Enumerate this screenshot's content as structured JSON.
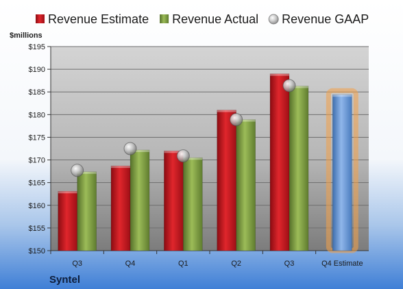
{
  "company": "Syntel",
  "chart_data": {
    "type": "bar",
    "unit_label": "$millions",
    "categories": [
      "Q3",
      "Q4",
      "Q1",
      "Q2",
      "Q3",
      "Q4 Estimate"
    ],
    "y_ticks": [
      "$150",
      "$155",
      "$160",
      "$165",
      "$170",
      "$175",
      "$180",
      "$185",
      "$190",
      "$195"
    ],
    "ylim": [
      150,
      195
    ],
    "legend_position": "top",
    "series": [
      {
        "name": "Revenue Estimate",
        "color": "#c8141c",
        "marker": "bar",
        "values": [
          163.1,
          168.7,
          172.0,
          181.0,
          189.0,
          null
        ]
      },
      {
        "name": "Revenue Actual",
        "color": "#7a9a3a",
        "marker": "bar",
        "values": [
          167.4,
          172.2,
          170.5,
          178.9,
          186.3,
          null
        ]
      },
      {
        "name": "Revenue GAAP",
        "color": "#a9a9a9",
        "marker": "circle",
        "values": [
          167.7,
          172.5,
          170.9,
          178.9,
          186.4,
          null
        ]
      },
      {
        "name": "",
        "color": "#6a9bd8",
        "marker": "bar",
        "highlight": "#f2a048",
        "values": [
          null,
          null,
          null,
          null,
          null,
          184.4
        ]
      }
    ]
  }
}
